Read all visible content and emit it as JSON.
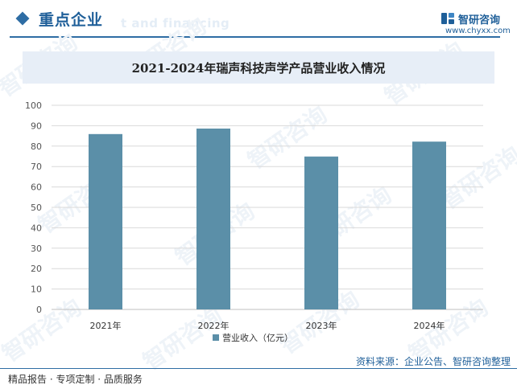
{
  "header": {
    "section_title": "重点企业",
    "ghost_text": "t and financing",
    "brand_name": "智研咨询",
    "brand_url": "www.chyxx.com"
  },
  "watermark_text": "智研咨询",
  "footer": {
    "left": "精品报告 · 专项定制 · 品质服务",
    "source": "资料来源：企业公告、智研咨询整理"
  },
  "colors": {
    "accent": "#2e6da4",
    "bar": "#5b8fa8",
    "title_band": "#e7eef7"
  },
  "chart_data": {
    "type": "bar",
    "title": "2021-2024年瑞声科技声学产品营业收入情况",
    "categories": [
      "2021年",
      "2022年",
      "2023年",
      "2024年"
    ],
    "series": [
      {
        "name": "营业收入（亿元）",
        "values": [
          85.9,
          88.6,
          74.9,
          82.2
        ]
      }
    ],
    "ylim": [
      0,
      100
    ],
    "yticks": [
      0,
      10,
      20,
      30,
      40,
      50,
      60,
      70,
      80,
      90,
      100
    ],
    "grid": true,
    "legend": "bottom",
    "xlabel": "",
    "ylabel": ""
  }
}
